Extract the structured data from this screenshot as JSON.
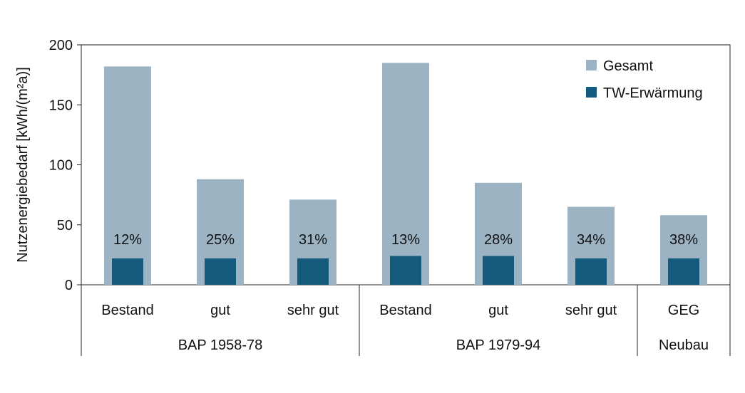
{
  "chart_data": {
    "type": "bar",
    "title": "",
    "xlabel": "",
    "ylabel": "Nutzenergiebedarf  [kWh/(m²a)]",
    "ylim": [
      0,
      200
    ],
    "yticks": [
      0,
      50,
      100,
      150,
      200
    ],
    "categories": [
      "Bestand",
      "gut",
      "sehr gut",
      "Bestand",
      "gut",
      "sehr gut",
      "GEG"
    ],
    "groups": [
      {
        "label": "BAP 1958-78",
        "count": 3
      },
      {
        "label": "BAP 1979-94",
        "count": 3
      },
      {
        "label": "Neubau",
        "count": 1
      }
    ],
    "series": [
      {
        "name": "Gesamt",
        "color": "#9bb3c2",
        "values": [
          182,
          88,
          71,
          185,
          85,
          65,
          58
        ]
      },
      {
        "name": "TW-Erwärmung",
        "color": "#135a7c",
        "values": [
          22,
          22,
          22,
          24,
          24,
          22,
          22
        ]
      }
    ],
    "bar_labels": [
      "12%",
      "25%",
      "31%",
      "13%",
      "28%",
      "34%",
      "38%"
    ],
    "grid": false,
    "legend_position": "top-right"
  }
}
